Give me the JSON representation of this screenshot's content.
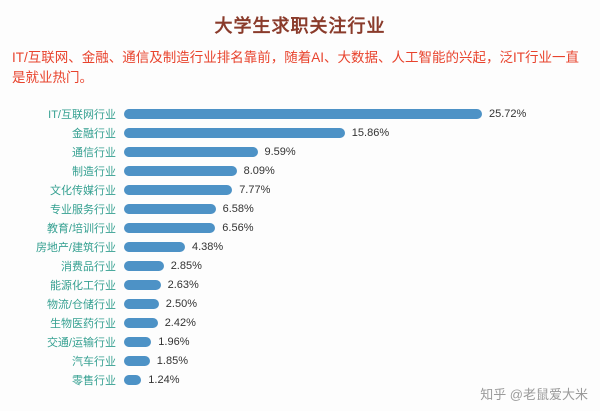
{
  "page": {
    "title": "大学生求职关注行业",
    "subtitle": "IT/互联网、金融、通信及制造行业排名靠前，随着AI、大数据、人工智能的兴起，泛IT行业一直是就业热门。",
    "watermark": "知乎 @老鼠爱大米"
  },
  "colors": {
    "title": "#8a3b2b",
    "subtitle": "#e8432d",
    "bar": "#4d92c6",
    "category_label": "#35a091",
    "value_label": "#333333",
    "watermark": "#9a9a9a",
    "background": "#fdfdfd"
  },
  "chart_data": {
    "type": "bar",
    "orientation": "horizontal",
    "title": "大学生求职关注行业",
    "xlabel": "",
    "ylabel": "",
    "grid": false,
    "legend": false,
    "xlim": [
      0,
      28
    ],
    "categories": [
      "IT/互联网行业",
      "金融行业",
      "通信行业",
      "制造行业",
      "文化传媒行业",
      "专业服务行业",
      "教育/培训行业",
      "房地产/建筑行业",
      "消费品行业",
      "能源化工行业",
      "物流/仓储行业",
      "生物医药行业",
      "交通/运输行业",
      "汽车行业",
      "零售行业"
    ],
    "values": [
      25.72,
      15.86,
      9.59,
      8.09,
      7.77,
      6.58,
      6.56,
      4.38,
      2.85,
      2.63,
      2.5,
      2.42,
      1.96,
      1.85,
      1.24
    ],
    "value_labels": [
      "25.72%",
      "15.86%",
      "9.59%",
      "8.09%",
      "7.77%",
      "6.58%",
      "6.56%",
      "4.38%",
      "2.85%",
      "2.63%",
      "2.50%",
      "2.42%",
      "1.96%",
      "1.85%",
      "1.24%"
    ]
  }
}
